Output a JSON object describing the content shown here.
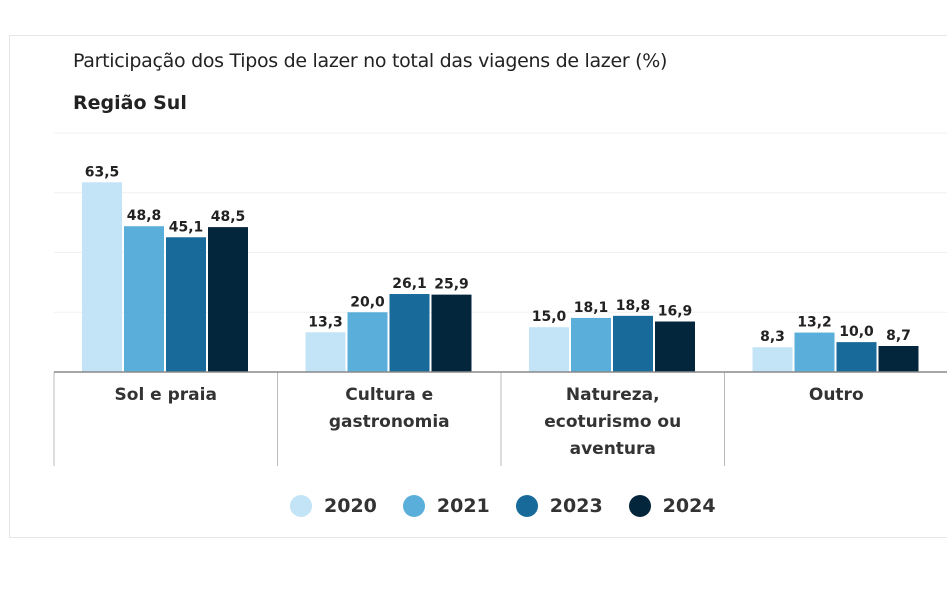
{
  "chart_data": {
    "type": "bar",
    "title": "Participação dos Tipos de lazer no total das viagens de lazer (%)",
    "subtitle": "Região Sul",
    "categories": [
      [
        "Sol e praia"
      ],
      [
        "Cultura e",
        "gastronomia"
      ],
      [
        "Natureza,",
        "ecoturismo ou",
        "aventura"
      ],
      [
        "Outro"
      ]
    ],
    "series": [
      {
        "name": "2020",
        "color": "#c3e4f7",
        "values": [
          63.5,
          13.3,
          15.0,
          8.3
        ],
        "labels": [
          "63,5",
          "13,3",
          "15,0",
          "8,3"
        ]
      },
      {
        "name": "2021",
        "color": "#5aafda",
        "values": [
          48.8,
          20.0,
          18.1,
          13.2
        ],
        "labels": [
          "48,8",
          "20,0",
          "18,1",
          "13,2"
        ]
      },
      {
        "name": "2023",
        "color": "#176a9a",
        "values": [
          45.1,
          26.1,
          18.8,
          10.0
        ],
        "labels": [
          "45,1",
          "26,1",
          "18,8",
          "10,0"
        ]
      },
      {
        "name": "2024",
        "color": "#04263d",
        "values": [
          48.5,
          25.9,
          16.9,
          8.7
        ],
        "labels": [
          "48,5",
          "25,9",
          "16,9",
          "8,7"
        ]
      }
    ],
    "ylim": [
      0,
      80
    ],
    "grid": true,
    "legend": "bottom"
  }
}
